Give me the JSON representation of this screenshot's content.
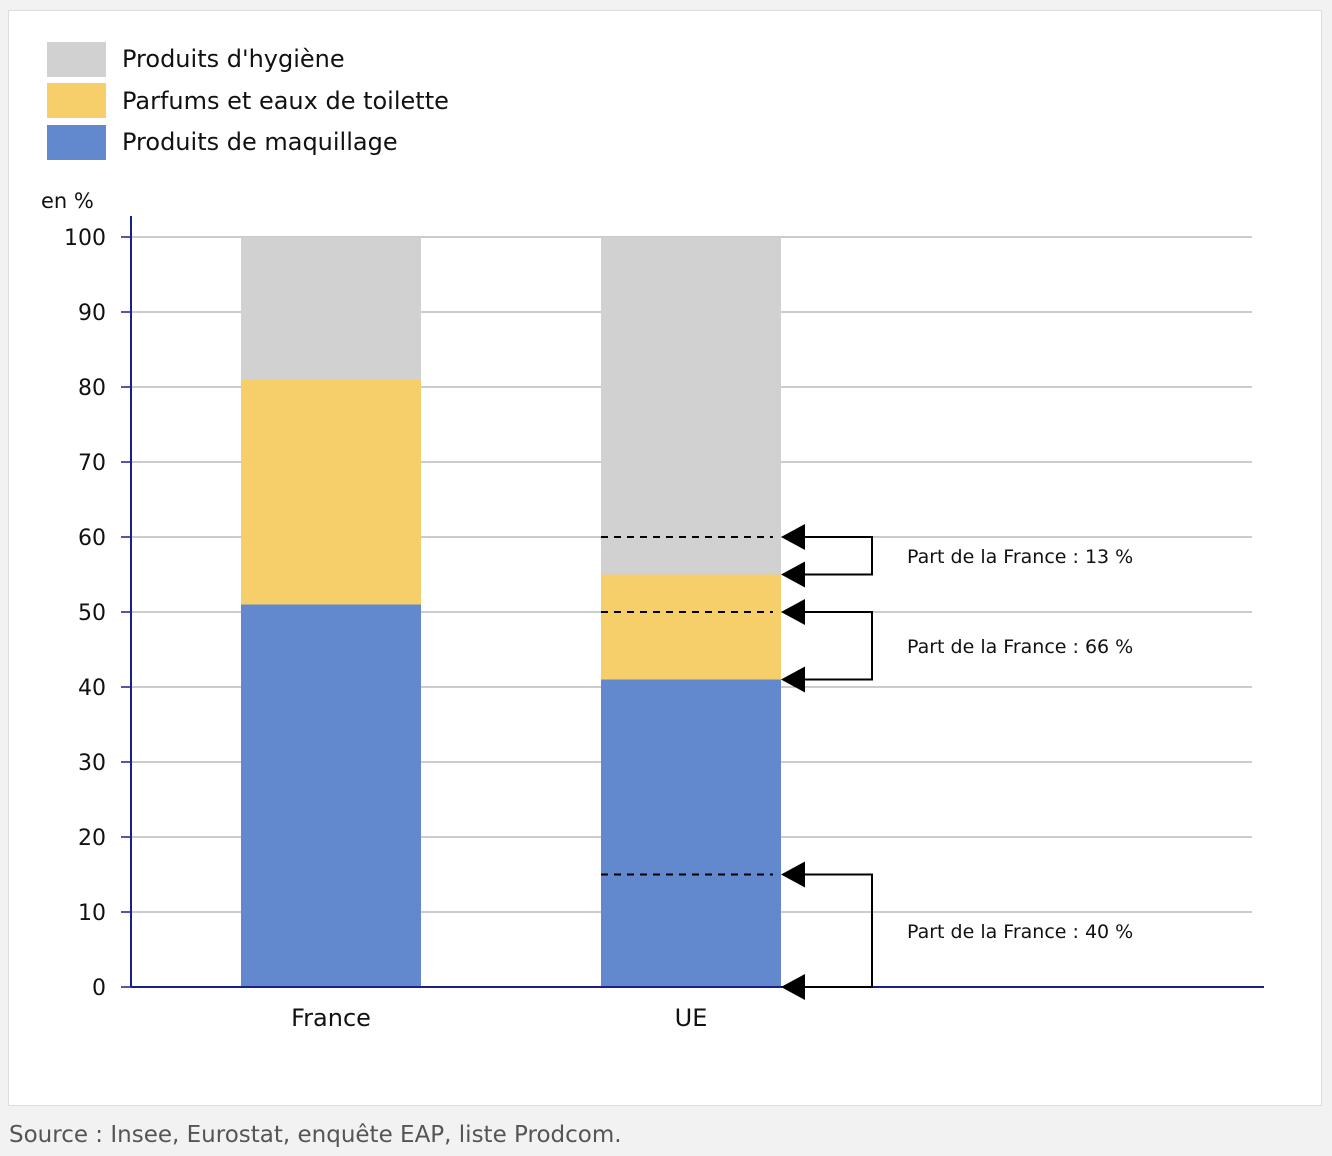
{
  "chart_data": {
    "type": "bar",
    "stacked": true,
    "categories": [
      "France",
      "UE"
    ],
    "series": [
      {
        "name": "Produits de maquillage",
        "color": "#6288cd",
        "values": [
          51,
          41
        ]
      },
      {
        "name": "Parfums et eaux de toilette",
        "color": "#f6cf6a",
        "values": [
          30,
          14
        ]
      },
      {
        "name": "Produits d'hygiène",
        "color": "#d1d1d1",
        "values": [
          19,
          45
        ]
      }
    ],
    "legend_order": [
      "Produits d'hygiène",
      "Parfums et eaux de toilette",
      "Produits de maquillage"
    ],
    "legend_position": "top-left",
    "ylabel": "en %",
    "ylim": [
      0,
      100
    ],
    "yticks": [
      0,
      10,
      20,
      30,
      40,
      50,
      60,
      70,
      80,
      90,
      100
    ],
    "grid": true,
    "axis_color": "#1a1f8c",
    "annotations": [
      {
        "text": "Part de la France : 13 %",
        "category": "UE",
        "y_from": 55,
        "y_to": 60,
        "dashed_at": 60
      },
      {
        "text": "Part de la France : 66 %",
        "category": "UE",
        "y_from": 41,
        "y_to": 50,
        "dashed_at": 50
      },
      {
        "text": "Part de la France : 40 %",
        "category": "UE",
        "y_from": 0,
        "y_to": 15,
        "dashed_at": 15
      }
    ]
  },
  "source": "Source : Insee, Eurostat, enquête EAP, liste Prodcom."
}
